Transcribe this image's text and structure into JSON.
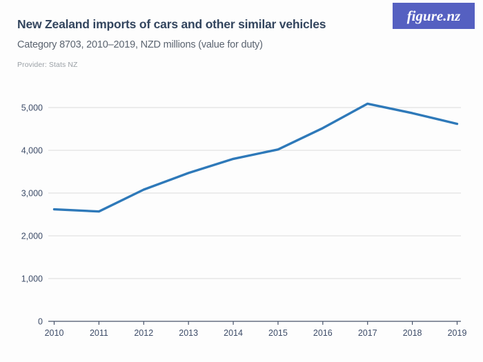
{
  "header": {
    "title": "New Zealand imports of cars and other similar vehicles",
    "subtitle": "Category 8703, 2010–2019, NZD millions (value for duty)",
    "provider": "Provider: Stats NZ",
    "logo_text": "figure.nz"
  },
  "colors": {
    "title": "#33455e",
    "subtitle": "#5b6470",
    "provider": "#9aa0a6",
    "logo_bg": "#5560c1",
    "logo_text": "#ffffff",
    "line": "#2e79b9",
    "grid": "#dcdcdc",
    "axis": "#47536a",
    "tick_text": "#3d4c68",
    "background": "#fdfdfd"
  },
  "chart_data": {
    "type": "line",
    "title": "New Zealand imports of cars and other similar vehicles",
    "subtitle": "Category 8703, 2010–2019, NZD millions (value for duty)",
    "x": [
      2010,
      2011,
      2012,
      2013,
      2014,
      2015,
      2016,
      2017,
      2018,
      2019
    ],
    "x_tick_labels": [
      "2010",
      "2011",
      "2012",
      "2013",
      "2014",
      "2015",
      "2016",
      "2017",
      "2018",
      "2019"
    ],
    "series": [
      {
        "name": "NZD millions (value for duty)",
        "values": [
          2620,
          2570,
          3080,
          3470,
          3800,
          4020,
          4520,
          5090,
          4870,
          4620
        ]
      }
    ],
    "xlabel": "",
    "ylabel": "NZD millions",
    "ylim": [
      0,
      5200
    ],
    "yticks": [
      0,
      1000,
      2000,
      3000,
      4000,
      5000
    ],
    "ytick_labels": [
      "0",
      "1,000",
      "2,000",
      "3,000",
      "4,000",
      "5,000"
    ],
    "grid": true,
    "legend": false
  }
}
